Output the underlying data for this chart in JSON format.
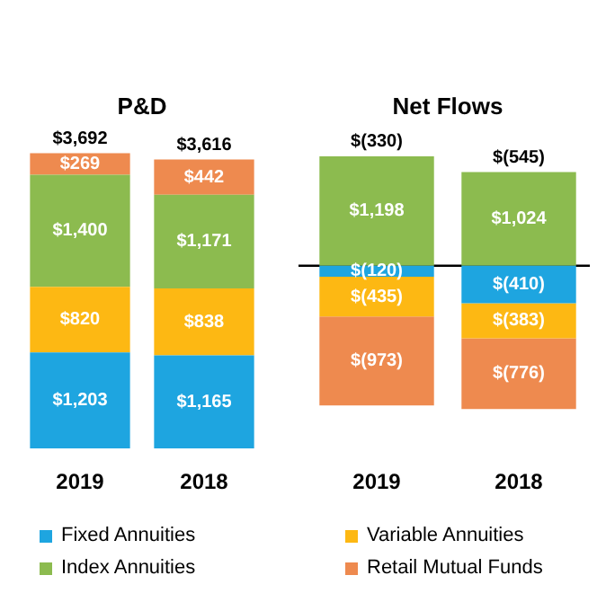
{
  "chart_data": [
    {
      "type": "bar",
      "title": "P&D",
      "categories": [
        "2019",
        "2018"
      ],
      "stacked": true,
      "tick_labels": "x",
      "grid": false,
      "legend": "bottom",
      "series": [
        {
          "name": "Fixed Annuities",
          "color": "#1ea5e0",
          "values": [
            1203,
            1165
          ],
          "value_labels": [
            "$1,203",
            "$1,165"
          ]
        },
        {
          "name": "Variable Annuities",
          "color": "#fdb813",
          "values": [
            820,
            838
          ],
          "value_labels": [
            "$820",
            "$838"
          ]
        },
        {
          "name": "Index Annuities",
          "color": "#8cbb4f",
          "values": [
            1400,
            1171
          ],
          "value_labels": [
            "$1,400",
            "$1,171"
          ]
        },
        {
          "name": "Retail Mutual Funds",
          "color": "#ee8a4f",
          "values": [
            269,
            442
          ],
          "value_labels": [
            "$269",
            "$442"
          ]
        }
      ],
      "totals": [
        "$3,692",
        "$3,616"
      ]
    },
    {
      "type": "bar",
      "title": "Net Flows",
      "categories": [
        "2019",
        "2018"
      ],
      "stacked": true,
      "tick_labels": "x",
      "grid": false,
      "series": [
        {
          "color": "#1ea5e0",
          "values": [
            -120,
            -410
          ],
          "value_labels": [
            "$(120)",
            "$(410)"
          ]
        },
        {
          "color": "#fdb813",
          "values": [
            -435,
            -383
          ],
          "value_labels": [
            "$(435)",
            "$(383)"
          ]
        },
        {
          "color": "#8cbb4f",
          "values": [
            1198,
            1024
          ],
          "value_labels": [
            "$1,198",
            "$1,024"
          ]
        },
        {
          "color": "#ee8a4f",
          "values": [
            -973,
            -776
          ],
          "value_labels": [
            "$(973)",
            "$(776)"
          ]
        }
      ],
      "totals": [
        "$(330)",
        "$(545)"
      ]
    }
  ]
}
